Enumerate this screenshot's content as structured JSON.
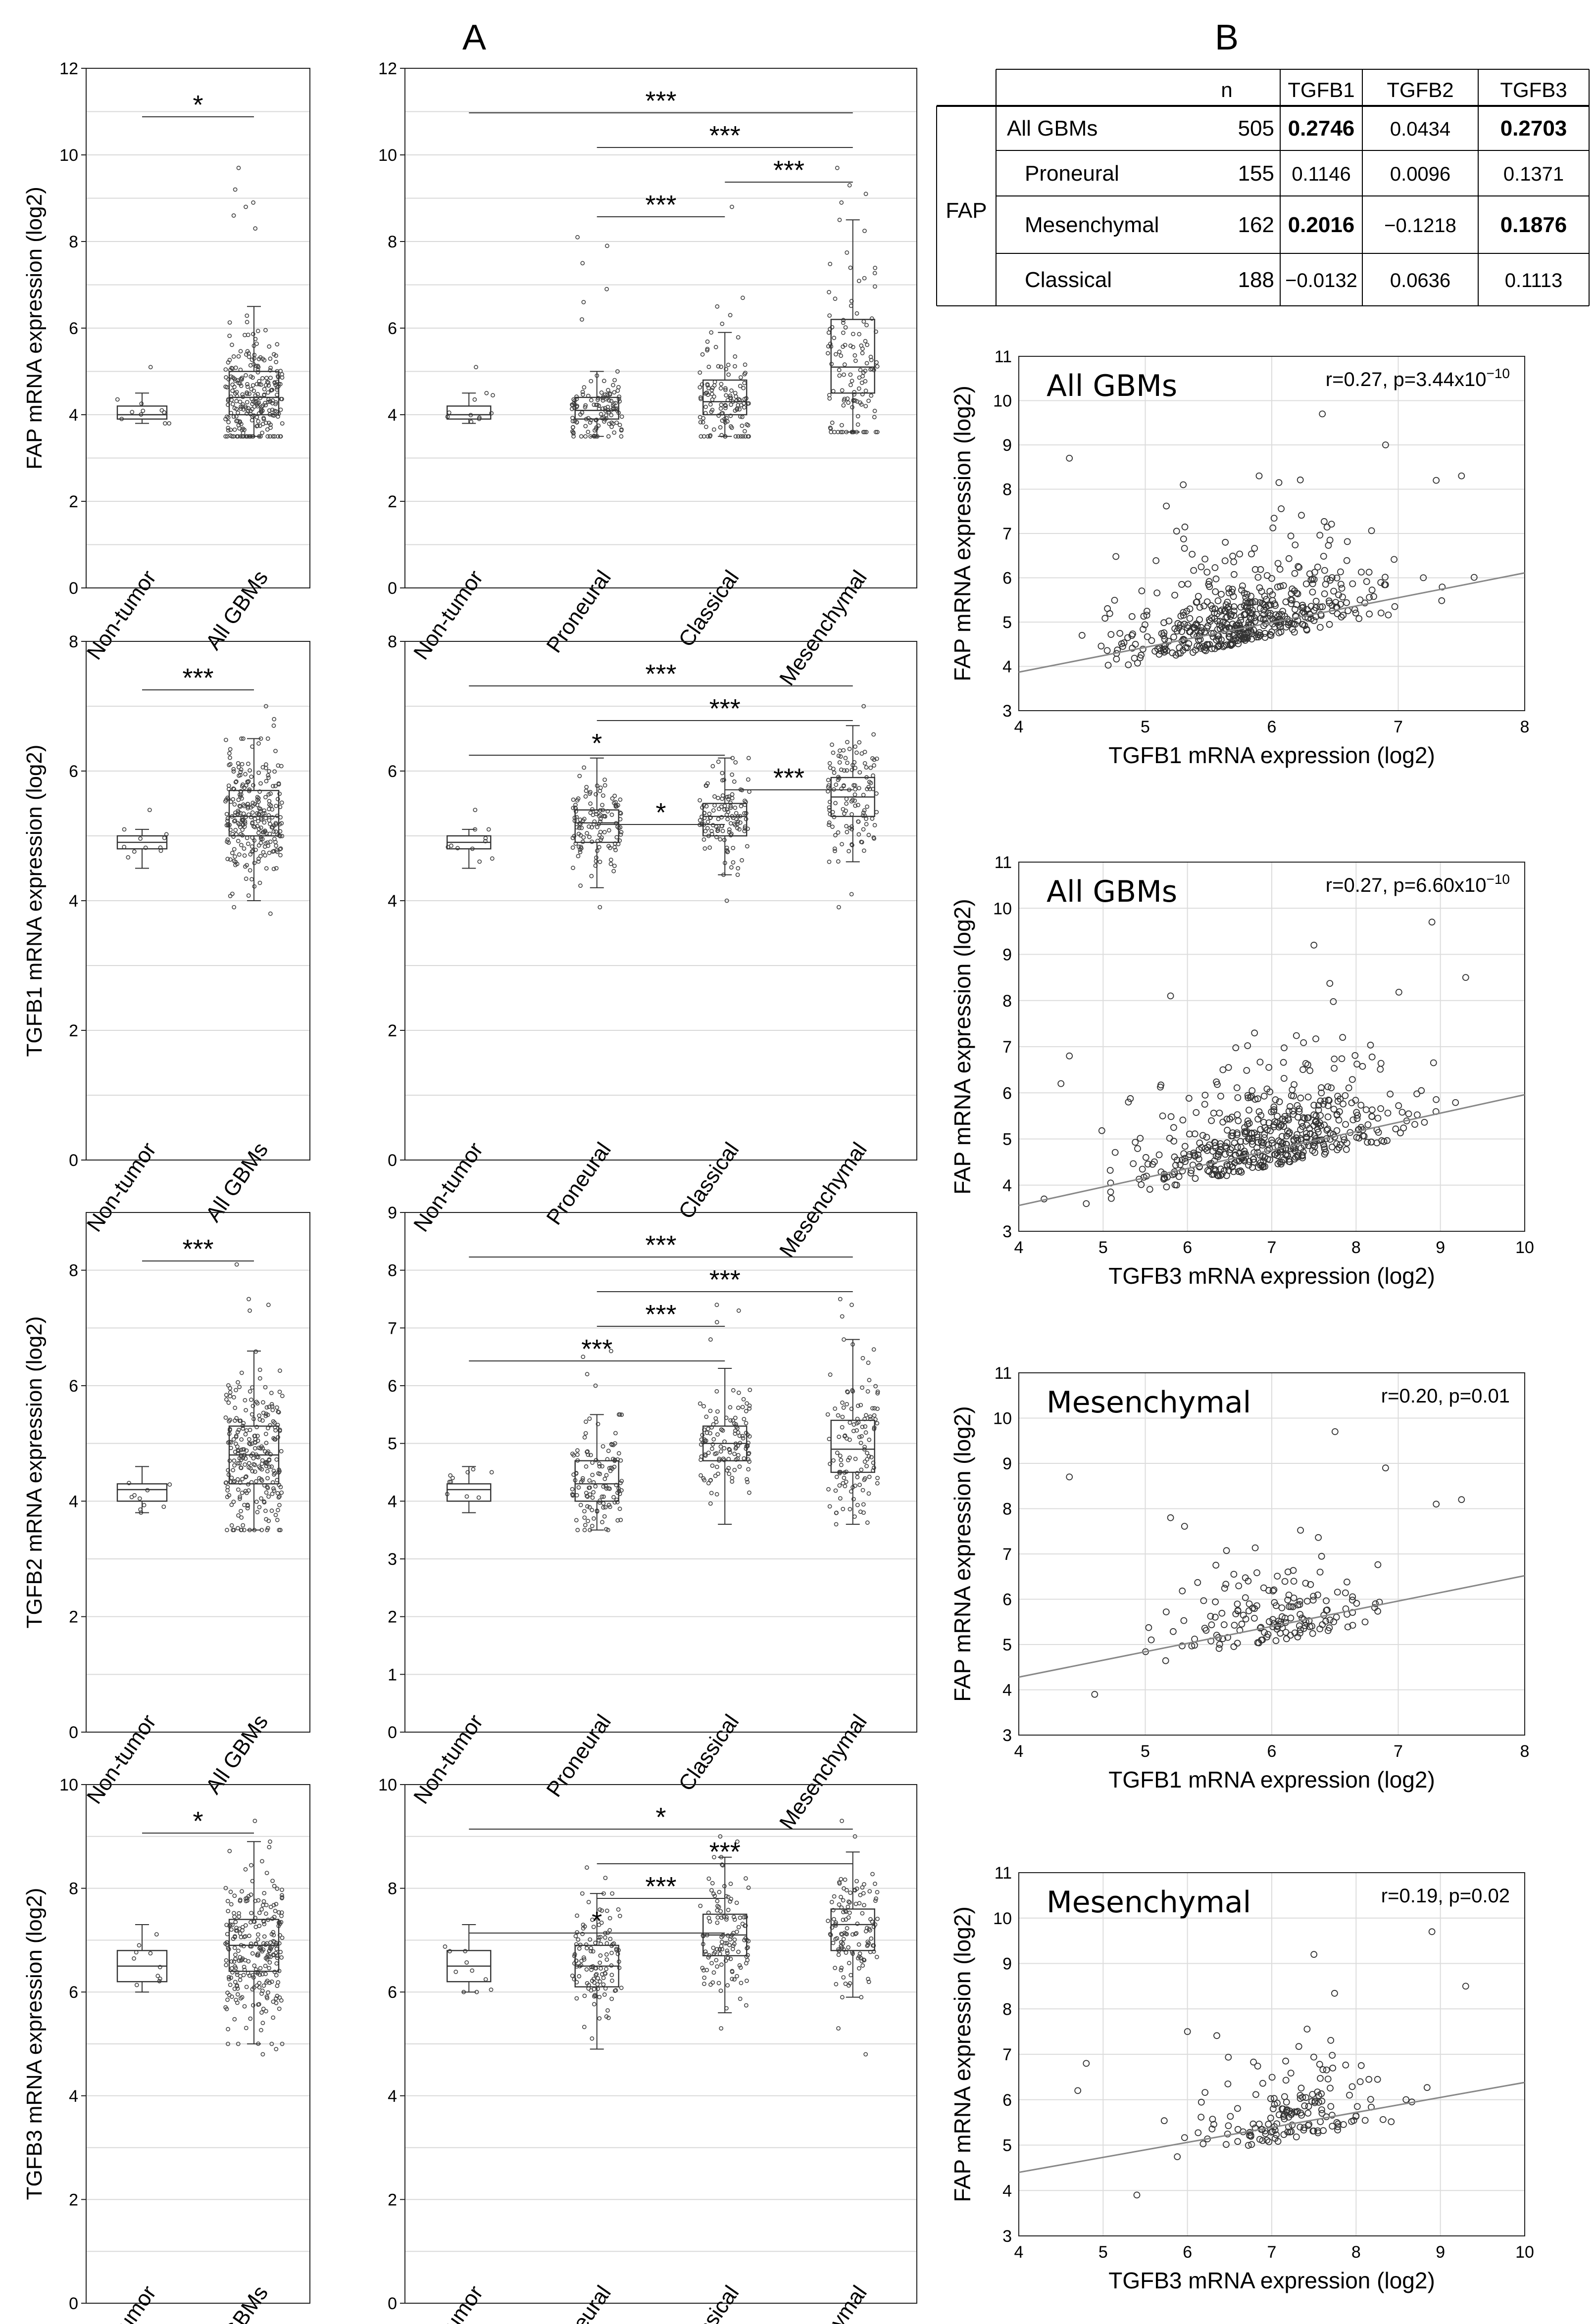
{
  "panels": {
    "a": "A",
    "b": "B"
  },
  "table": {
    "cols": [
      "",
      "",
      "n",
      "TGFB1",
      "TGFB2",
      "TGFB3"
    ],
    "group": "FAP",
    "rows": [
      {
        "label": "All GBMs",
        "n": "505",
        "v": [
          "0.2746",
          "0.0434",
          "0.2703"
        ],
        "bold": [
          true,
          false,
          true
        ]
      },
      {
        "label": "Proneural",
        "n": "155",
        "v": [
          "0.1146",
          "0.0096",
          "0.1371"
        ],
        "bold": [
          false,
          false,
          false
        ]
      },
      {
        "label": "Mesenchymal",
        "n": "162",
        "v": [
          "0.2016",
          "−0.1218",
          "0.1876"
        ],
        "bold": [
          true,
          false,
          true
        ]
      },
      {
        "label": "Classical",
        "n": "188",
        "v": [
          "−0.0132",
          "0.0636",
          "0.1113"
        ],
        "bold": [
          false,
          false,
          false
        ]
      }
    ]
  },
  "chart_data": [
    {
      "type": "box",
      "gene": "FAP",
      "ylabel": "FAP mRNA expression (log2)",
      "ylim": [
        0,
        12
      ],
      "yticks": [
        0,
        2,
        4,
        6,
        8,
        10,
        12
      ],
      "categories": [
        "Non-tumor",
        "All GBMs"
      ],
      "stats": [
        {
          "min": 3.8,
          "q1": 3.9,
          "med": 4.0,
          "q3": 4.2,
          "max": 4.5,
          "pts": [
            5.1
          ]
        },
        {
          "min": 3.5,
          "q1": 4.0,
          "med": 4.4,
          "q3": 5.0,
          "max": 6.5,
          "pts": [
            9.7,
            9.2,
            8.9,
            8.8,
            8.6,
            8.3
          ]
        }
      ],
      "sig": [
        {
          "from": 0,
          "to": 1,
          "label": "*"
        }
      ]
    },
    {
      "type": "box",
      "gene": "FAP",
      "ylabel": "",
      "ylim": [
        0,
        12
      ],
      "yticks": [
        0,
        2,
        4,
        6,
        8,
        10,
        12
      ],
      "categories": [
        "Non-tumor",
        "Proneural",
        "Classical",
        "Mesenchymal"
      ],
      "stats": [
        {
          "min": 3.8,
          "q1": 3.9,
          "med": 4.0,
          "q3": 4.2,
          "max": 4.5,
          "pts": [
            5.1
          ]
        },
        {
          "min": 3.5,
          "q1": 3.9,
          "med": 4.1,
          "q3": 4.4,
          "max": 5.0,
          "pts": [
            8.1,
            7.9,
            7.5,
            6.9,
            6.6,
            6.2
          ]
        },
        {
          "min": 3.5,
          "q1": 4.0,
          "med": 4.3,
          "q3": 4.8,
          "max": 5.9,
          "pts": [
            8.8,
            6.7,
            6.5,
            6.3,
            6.1
          ]
        },
        {
          "min": 3.6,
          "q1": 4.5,
          "med": 5.1,
          "q3": 6.2,
          "max": 8.5,
          "pts": [
            9.7,
            9.3,
            9.1,
            8.9
          ]
        }
      ],
      "sig": [
        {
          "from": 0,
          "to": 3,
          "label": "***"
        },
        {
          "from": 1,
          "to": 3,
          "label": "***"
        },
        {
          "from": 2,
          "to": 3,
          "label": "***"
        },
        {
          "from": 1,
          "to": 2,
          "label": "***"
        }
      ]
    },
    {
      "type": "box",
      "gene": "TGFB1",
      "ylabel": "TGFB1 mRNA expression (log2)",
      "ylim": [
        0,
        8
      ],
      "yticks": [
        0,
        2,
        4,
        6,
        8
      ],
      "categories": [
        "Non-tumor",
        "All GBMs"
      ],
      "stats": [
        {
          "min": 4.5,
          "q1": 4.8,
          "med": 4.9,
          "q3": 5.0,
          "max": 5.1,
          "pts": [
            5.4
          ]
        },
        {
          "min": 4.0,
          "q1": 5.0,
          "med": 5.3,
          "q3": 5.7,
          "max": 6.5,
          "pts": [
            7.0,
            6.8,
            6.7,
            3.9,
            3.8
          ]
        }
      ],
      "sig": [
        {
          "from": 0,
          "to": 1,
          "label": "***"
        }
      ]
    },
    {
      "type": "box",
      "gene": "TGFB1",
      "ylabel": "",
      "ylim": [
        0,
        8
      ],
      "yticks": [
        0,
        2,
        4,
        6,
        8
      ],
      "categories": [
        "Non-tumor",
        "Proneural",
        "Classical",
        "Mesenchymal"
      ],
      "stats": [
        {
          "min": 4.5,
          "q1": 4.8,
          "med": 4.9,
          "q3": 5.0,
          "max": 5.1,
          "pts": [
            5.4
          ]
        },
        {
          "min": 4.2,
          "q1": 4.9,
          "med": 5.2,
          "q3": 5.4,
          "max": 6.2,
          "pts": [
            3.9
          ]
        },
        {
          "min": 4.4,
          "q1": 5.0,
          "med": 5.3,
          "q3": 5.5,
          "max": 6.2,
          "pts": [
            4.0
          ]
        },
        {
          "min": 4.6,
          "q1": 5.3,
          "med": 5.6,
          "q3": 5.9,
          "max": 6.7,
          "pts": [
            7.0,
            4.1,
            3.9
          ]
        }
      ],
      "sig": [
        {
          "from": 0,
          "to": 3,
          "label": "***"
        },
        {
          "from": 1,
          "to": 3,
          "label": "***"
        },
        {
          "from": 0,
          "to": 2,
          "label": "*"
        },
        {
          "from": 2,
          "to": 3,
          "label": "***"
        },
        {
          "from": 1,
          "to": 2,
          "label": "*"
        }
      ]
    },
    {
      "type": "box",
      "gene": "TGFB2",
      "ylabel": "TGFB2 mRNA expression (log2)",
      "ylim": [
        0,
        9
      ],
      "yticks": [
        0,
        2,
        4,
        6,
        8
      ],
      "categories": [
        "Non-tumor",
        "All GBMs"
      ],
      "stats": [
        {
          "min": 3.8,
          "q1": 4.0,
          "med": 4.2,
          "q3": 4.3,
          "max": 4.6,
          "pts": []
        },
        {
          "min": 3.5,
          "q1": 4.3,
          "med": 4.8,
          "q3": 5.3,
          "max": 6.6,
          "pts": [
            8.1,
            7.5,
            7.4,
            7.3
          ]
        }
      ],
      "sig": [
        {
          "from": 0,
          "to": 1,
          "label": "***"
        }
      ]
    },
    {
      "type": "box",
      "gene": "TGFB2",
      "ylabel": "",
      "ylim": [
        0,
        9
      ],
      "yticks": [
        0,
        1,
        2,
        3,
        4,
        5,
        6,
        7,
        8,
        9
      ],
      "categories": [
        "Non-tumor",
        "Proneural",
        "Classical",
        "Mesenchymal"
      ],
      "stats": [
        {
          "min": 3.8,
          "q1": 4.0,
          "med": 4.2,
          "q3": 4.3,
          "max": 4.6,
          "pts": []
        },
        {
          "min": 3.5,
          "q1": 4.0,
          "med": 4.3,
          "q3": 4.7,
          "max": 5.5,
          "pts": [
            6.6,
            6.5,
            6.2,
            6.0
          ]
        },
        {
          "min": 3.6,
          "q1": 4.7,
          "med": 5.0,
          "q3": 5.3,
          "max": 6.3,
          "pts": [
            7.4,
            7.3,
            7.1,
            6.8
          ]
        },
        {
          "min": 3.6,
          "q1": 4.5,
          "med": 4.9,
          "q3": 5.4,
          "max": 6.8,
          "pts": [
            7.5,
            7.4,
            7.2
          ]
        }
      ],
      "sig": [
        {
          "from": 0,
          "to": 3,
          "label": "***"
        },
        {
          "from": 1,
          "to": 3,
          "label": "***"
        },
        {
          "from": 1,
          "to": 2,
          "label": "***"
        },
        {
          "from": 0,
          "to": 2,
          "label": "***"
        }
      ]
    },
    {
      "type": "box",
      "gene": "TGFB3",
      "ylabel": "TGFB3 mRNA expression (log2)",
      "ylim": [
        0,
        10
      ],
      "yticks": [
        0,
        2,
        4,
        6,
        8,
        10
      ],
      "categories": [
        "Non-tumor",
        "All GBMs"
      ],
      "stats": [
        {
          "min": 6.0,
          "q1": 6.2,
          "med": 6.5,
          "q3": 6.8,
          "max": 7.3,
          "pts": []
        },
        {
          "min": 5.0,
          "q1": 6.4,
          "med": 6.9,
          "q3": 7.4,
          "max": 8.9,
          "pts": [
            9.3,
            4.9,
            4.8
          ]
        }
      ],
      "sig": [
        {
          "from": 0,
          "to": 1,
          "label": "*"
        }
      ]
    },
    {
      "type": "box",
      "gene": "TGFB3",
      "ylabel": "",
      "ylim": [
        0,
        10
      ],
      "yticks": [
        0,
        2,
        4,
        6,
        8,
        10
      ],
      "categories": [
        "Non-tumor",
        "Proneural",
        "Classical",
        "Mesenchymal"
      ],
      "stats": [
        {
          "min": 6.0,
          "q1": 6.2,
          "med": 6.5,
          "q3": 6.8,
          "max": 7.3,
          "pts": []
        },
        {
          "min": 4.9,
          "q1": 6.1,
          "med": 6.5,
          "q3": 6.9,
          "max": 7.9,
          "pts": [
            8.4,
            8.2
          ]
        },
        {
          "min": 5.6,
          "q1": 6.7,
          "med": 7.1,
          "q3": 7.5,
          "max": 8.6,
          "pts": [
            9.0,
            8.9,
            5.3
          ]
        },
        {
          "min": 5.9,
          "q1": 6.8,
          "med": 7.3,
          "q3": 7.6,
          "max": 8.7,
          "pts": [
            9.3,
            9.0,
            5.3,
            4.8
          ]
        }
      ],
      "sig": [
        {
          "from": 0,
          "to": 3,
          "label": "*"
        },
        {
          "from": 1,
          "to": 3,
          "label": "***"
        },
        {
          "from": 1,
          "to": 2,
          "label": "***"
        },
        {
          "from": 0,
          "to": 2,
          "label": "*"
        }
      ]
    },
    {
      "type": "scatter",
      "title": "All GBMs",
      "stat": "r=0.27, p=3.44x10",
      "exp": "−10",
      "xlabel": "TGFB1 mRNA expression (log2)",
      "ylabel": "FAP mRNA expression (log2)",
      "xlim": [
        4,
        8
      ],
      "ylim": [
        3,
        11
      ],
      "xticks": [
        4,
        5,
        6,
        7,
        8
      ],
      "yticks": [
        3,
        4,
        5,
        6,
        7,
        8,
        9,
        10,
        11
      ],
      "n": 505,
      "fit": {
        "slope": 0.56,
        "intercept": 1.63
      },
      "xmean": 5.8,
      "xsd": 0.5,
      "seed": 11,
      "outliers": [
        [
          4.4,
          8.7
        ],
        [
          4.5,
          4.7
        ],
        [
          6.4,
          9.7
        ],
        [
          6.9,
          9.0
        ],
        [
          7.3,
          8.2
        ],
        [
          7.5,
          8.3
        ],
        [
          5.3,
          8.1
        ],
        [
          5.9,
          8.3
        ]
      ]
    },
    {
      "type": "scatter",
      "title": "All GBMs",
      "stat": "r=0.27, p=6.60x10",
      "exp": "−10",
      "xlabel": "TGFB3 mRNA expression (log2)",
      "ylabel": "FAP mRNA expression (log2)",
      "xlim": [
        4,
        10
      ],
      "ylim": [
        3,
        11
      ],
      "xticks": [
        4,
        5,
        6,
        7,
        8,
        9,
        10
      ],
      "yticks": [
        3,
        4,
        5,
        6,
        7,
        8,
        9,
        10,
        11
      ],
      "n": 505,
      "fit": {
        "slope": 0.4,
        "intercept": 1.96
      },
      "xmean": 7.0,
      "xsd": 0.75,
      "seed": 23,
      "outliers": [
        [
          4.6,
          6.8
        ],
        [
          4.5,
          6.2
        ],
        [
          4.8,
          3.6
        ],
        [
          5.3,
          5.8
        ],
        [
          8.9,
          9.7
        ],
        [
          9.3,
          8.5
        ],
        [
          7.5,
          9.2
        ],
        [
          5.8,
          8.1
        ]
      ]
    },
    {
      "type": "scatter",
      "title": "Mesenchymal",
      "stat": "r=0.20, p=0.01",
      "exp": "",
      "xlabel": "TGFB1 mRNA expression (log2)",
      "ylabel": "FAP mRNA expression (log2)",
      "xlim": [
        4,
        8
      ],
      "ylim": [
        3,
        11
      ],
      "xticks": [
        4,
        5,
        6,
        7,
        8
      ],
      "yticks": [
        3,
        4,
        5,
        6,
        7,
        8,
        9,
        10,
        11
      ],
      "n": 162,
      "fit": {
        "slope": 0.56,
        "intercept": 2.04
      },
      "xmean": 6.0,
      "xsd": 0.4,
      "seed": 37,
      "outliers": [
        [
          4.4,
          8.7
        ],
        [
          4.6,
          3.9
        ],
        [
          6.5,
          9.7
        ],
        [
          7.5,
          8.2
        ],
        [
          7.3,
          8.1
        ],
        [
          6.9,
          8.9
        ],
        [
          5.2,
          7.8
        ]
      ]
    },
    {
      "type": "scatter",
      "title": "Mesenchymal",
      "stat": "r=0.19, p=0.02",
      "exp": "",
      "xlabel": "TGFB3 mRNA expression (log2)",
      "ylabel": "FAP mRNA expression (log2)",
      "xlim": [
        4,
        10
      ],
      "ylim": [
        3,
        11
      ],
      "xticks": [
        4,
        5,
        6,
        7,
        8,
        9,
        10
      ],
      "yticks": [
        3,
        4,
        5,
        6,
        7,
        8,
        9,
        10,
        11
      ],
      "n": 162,
      "fit": {
        "slope": 0.33,
        "intercept": 3.08
      },
      "xmean": 7.2,
      "xsd": 0.6,
      "seed": 53,
      "outliers": [
        [
          4.8,
          6.8
        ],
        [
          4.7,
          6.2
        ],
        [
          5.4,
          3.9
        ],
        [
          8.9,
          9.7
        ],
        [
          9.3,
          8.5
        ],
        [
          7.5,
          9.2
        ],
        [
          6.0,
          7.5
        ]
      ]
    }
  ]
}
